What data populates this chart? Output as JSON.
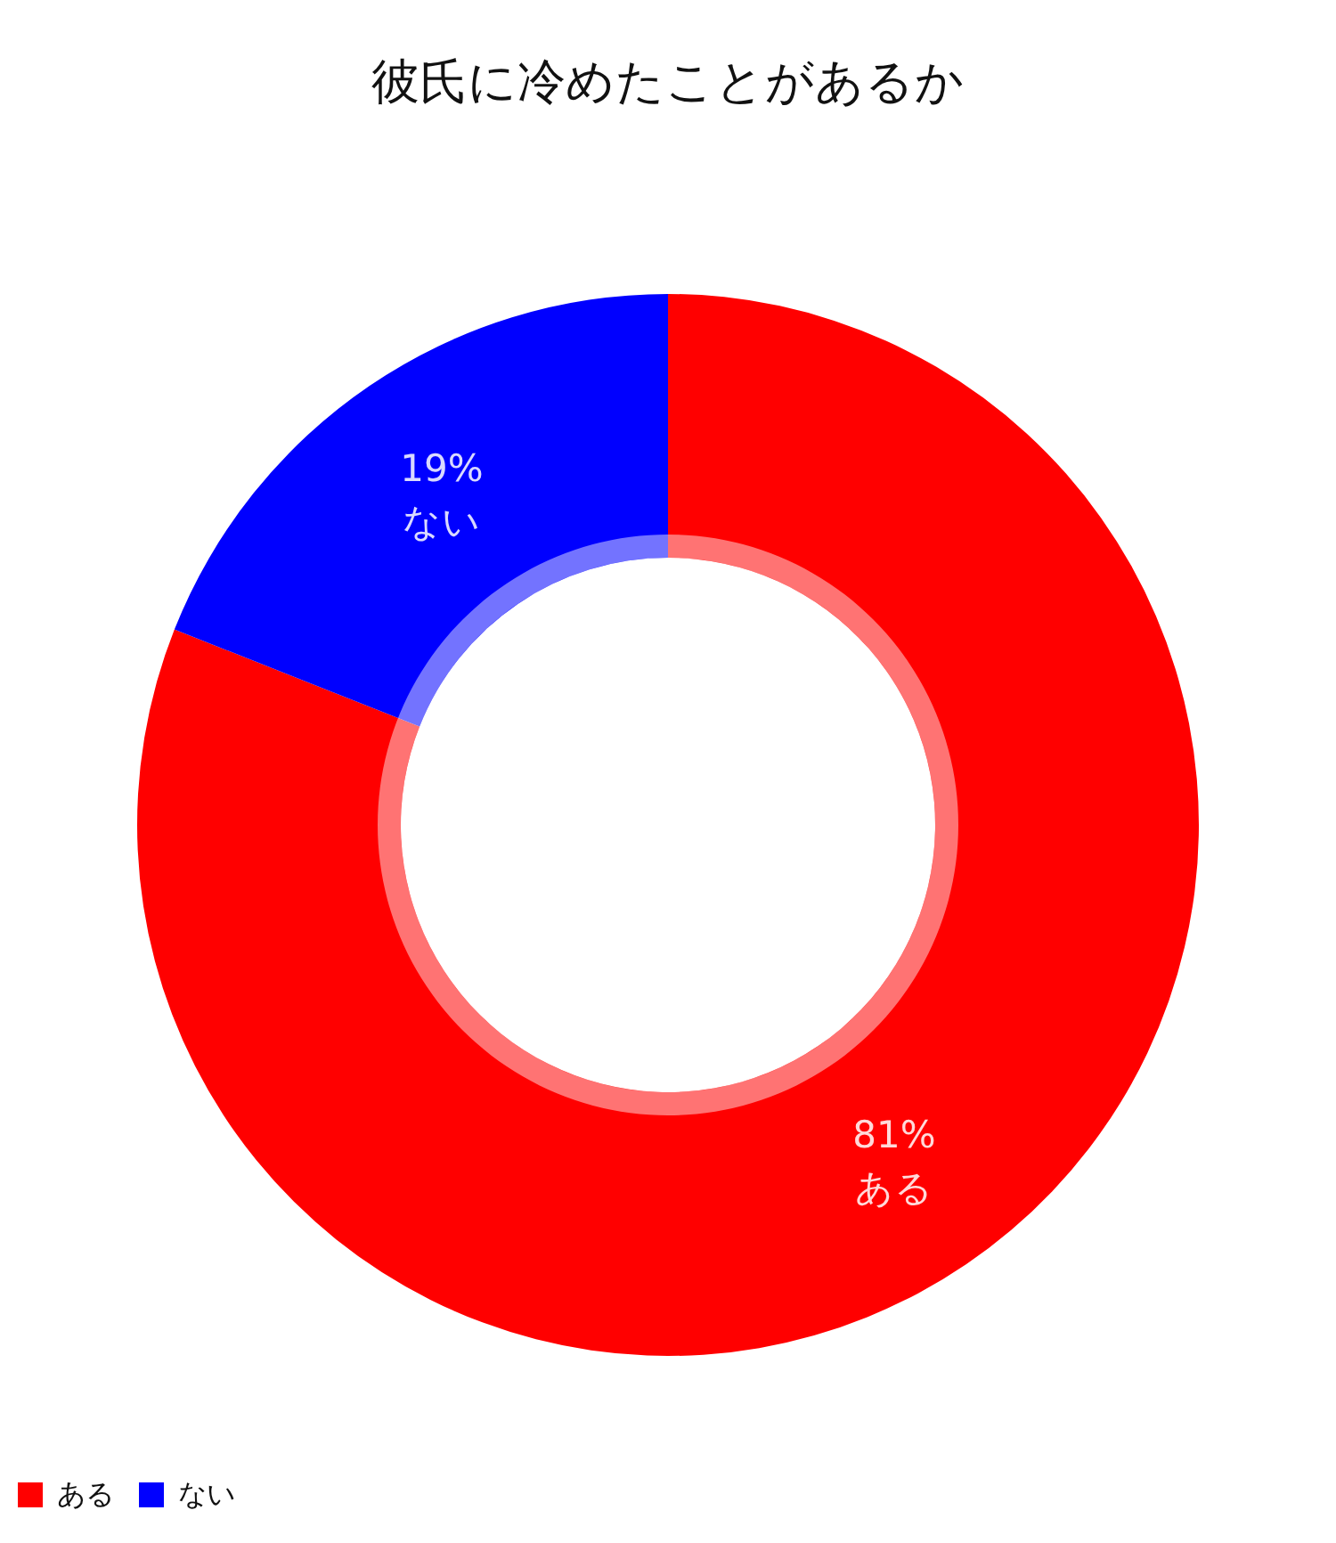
{
  "chart_data": {
    "type": "donut",
    "title": "彼氏に冷めたことがあるか",
    "categories": [
      "ある",
      "ない"
    ],
    "values": [
      81,
      19
    ],
    "colors": [
      "#ff0000",
      "#0000ff"
    ],
    "value_labels": [
      "81%",
      "19%"
    ],
    "legend": "bottom left"
  }
}
